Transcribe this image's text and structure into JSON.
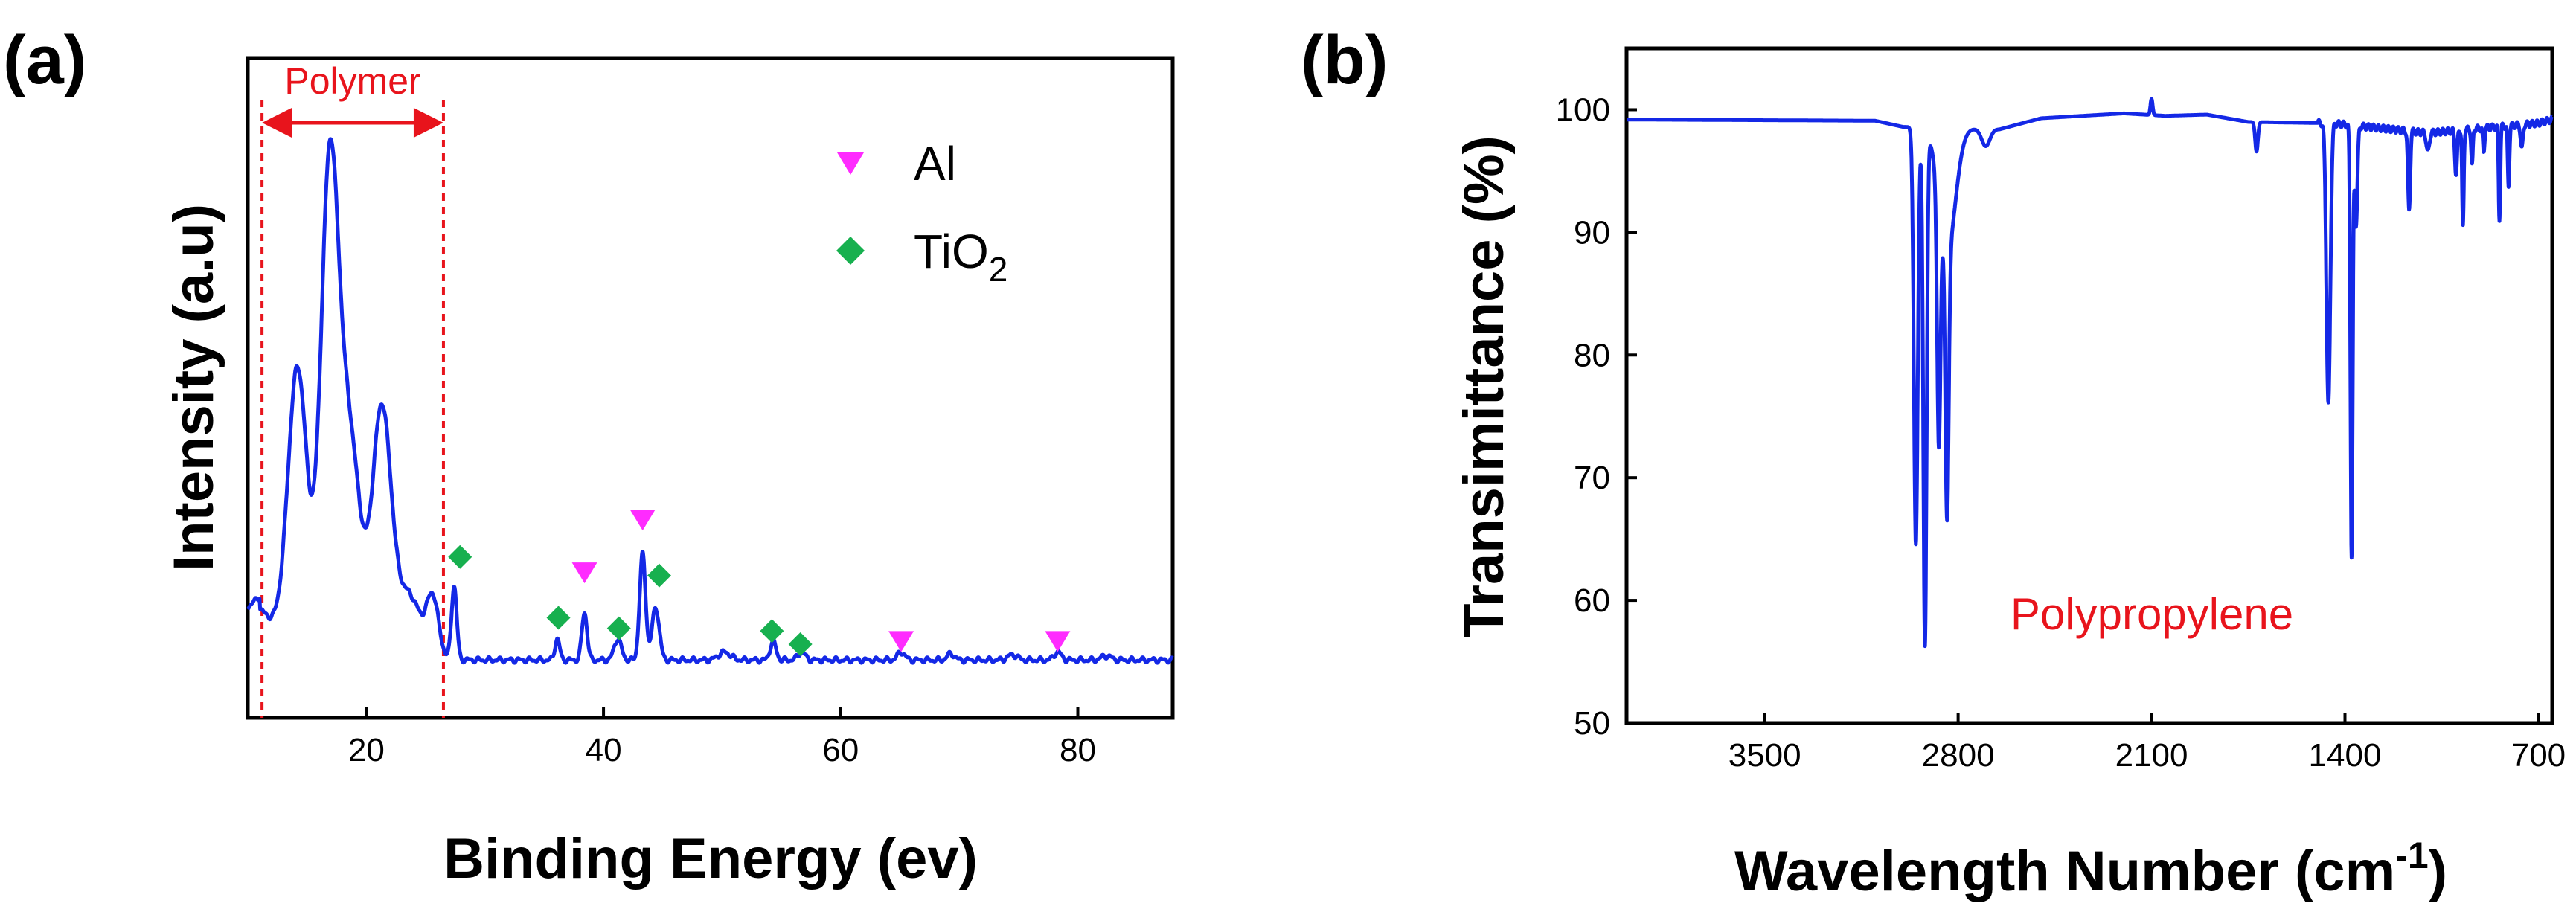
{
  "colors": {
    "series": "#1428e6",
    "annotation": "#e8141c",
    "al_marker": "#ff2bff",
    "tio2_marker": "#17b04f",
    "axis": "#000000"
  },
  "chart_data": [
    {
      "type": "line",
      "panel_label": "(a)",
      "title": "",
      "xlabel": "Binding Energy (ev)",
      "ylabel": "Intensity (a.u)",
      "xlim": [
        10,
        88
      ],
      "ylim": [
        0,
        100
      ],
      "xticks": [
        20,
        40,
        60,
        80
      ],
      "yticks": [],
      "grid": false,
      "legend_position": "top-right",
      "legend": [
        {
          "name": "Al",
          "marker": "triangle-down"
        },
        {
          "name": "TiO",
          "subscript": "2",
          "marker": "diamond"
        }
      ],
      "region_annotation": {
        "label": "Polymer",
        "x_start": 11.2,
        "x_end": 26.5
      },
      "series": [
        {
          "name": "Intensity",
          "peaks": [
            {
              "x": 14.2,
              "height": 52,
              "width": 0.8
            },
            {
              "x": 16.9,
              "height": 90,
              "width": 0.75
            },
            {
              "x": 18.6,
              "height": 40,
              "width": 0.9
            },
            {
              "x": 21.3,
              "height": 47,
              "width": 0.8
            },
            {
              "x": 23.6,
              "height": 12,
              "width": 1.0
            },
            {
              "x": 25.6,
              "height": 11,
              "width": 0.5
            },
            {
              "x": 27.4,
              "height": 14,
              "width": 0.22
            },
            {
              "x": 36.1,
              "height": 4,
              "width": 0.2
            },
            {
              "x": 38.4,
              "height": 9,
              "width": 0.22
            },
            {
              "x": 41.2,
              "height": 4,
              "width": 0.3
            },
            {
              "x": 43.3,
              "height": 20,
              "width": 0.25
            },
            {
              "x": 44.4,
              "height": 10,
              "width": 0.3
            },
            {
              "x": 50.2,
              "height": 1.5,
              "width": 0.5
            },
            {
              "x": 54.3,
              "height": 3.5,
              "width": 0.25
            },
            {
              "x": 56.7,
              "height": 1.5,
              "width": 0.3
            },
            {
              "x": 65.1,
              "height": 1.5,
              "width": 0.3
            },
            {
              "x": 69.3,
              "height": 1.2,
              "width": 0.3
            },
            {
              "x": 74.5,
              "height": 1,
              "width": 0.4
            },
            {
              "x": 78.3,
              "height": 1.5,
              "width": 0.3
            },
            {
              "x": 82.4,
              "height": 0.8,
              "width": 0.4
            }
          ]
        }
      ],
      "markers": [
        {
          "kind": "Al",
          "x": 38.4,
          "y": 19
        },
        {
          "kind": "Al",
          "x": 43.3,
          "y": 29
        },
        {
          "kind": "Al",
          "x": 65.1,
          "y": 6
        },
        {
          "kind": "Al",
          "x": 78.3,
          "y": 6
        },
        {
          "kind": "TiO2",
          "x": 27.9,
          "y": 22
        },
        {
          "kind": "TiO2",
          "x": 36.2,
          "y": 10.5
        },
        {
          "kind": "TiO2",
          "x": 41.3,
          "y": 8.5
        },
        {
          "kind": "TiO2",
          "x": 44.7,
          "y": 18.5
        },
        {
          "kind": "TiO2",
          "x": 54.2,
          "y": 8
        },
        {
          "kind": "TiO2",
          "x": 56.6,
          "y": 5.5
        }
      ]
    },
    {
      "type": "line",
      "panel_label": "(b)",
      "title": "",
      "xlabel": "Wavelength Number (cm",
      "xlabel_superscript": "-1",
      "xlabel_close": ")",
      "ylabel": "Transimittance (%)",
      "xlim": [
        4000,
        650
      ],
      "ylim": [
        50,
        105
      ],
      "xticks": [
        3500,
        2800,
        2100,
        1400,
        700
      ],
      "yticks": [
        50,
        60,
        70,
        80,
        90,
        100
      ],
      "grid": false,
      "annotation": "Polypropylene",
      "series": [
        {
          "name": "Transmittance",
          "baseline": [
            [
              4000,
              99.2
            ],
            [
              3100,
              99.1
            ],
            [
              3000,
              98.6
            ],
            [
              2650,
              98.4
            ],
            [
              2500,
              99.3
            ],
            [
              2200,
              99.7
            ],
            [
              2050,
              99.5
            ],
            [
              1900,
              99.6
            ],
            [
              1750,
              99.0
            ],
            [
              1450,
              98.9
            ],
            [
              1100,
              98.1
            ],
            [
              900,
              98.5
            ],
            [
              700,
              98.9
            ],
            [
              650,
              99.2
            ]
          ],
          "dips": [
            {
              "x": 2953,
              "depth": 34,
              "width": 7
            },
            {
              "x": 2920,
              "depth": 42,
              "width": 6
            },
            {
              "x": 2870,
              "depth": 20,
              "width": 6
            },
            {
              "x": 2840,
              "depth": 22,
              "width": 6
            },
            {
              "x": 2840,
              "depth": 10,
              "width": 30
            },
            {
              "x": 2700,
              "depth": 1.4,
              "width": 15
            },
            {
              "x": 2100,
              "depth": -1.3,
              "width": 4
            },
            {
              "x": 1720,
              "depth": 2.4,
              "width": 5
            },
            {
              "x": 1460,
              "depth": 23,
              "width": 7
            },
            {
              "x": 1376,
              "depth": 35,
              "width": 4
            },
            {
              "x": 1360,
              "depth": 8,
              "width": 5
            },
            {
              "x": 1168,
              "depth": 6.5,
              "width": 4
            },
            {
              "x": 1100,
              "depth": 1.6,
              "width": 5
            },
            {
              "x": 998,
              "depth": 3.5,
              "width": 4
            },
            {
              "x": 973,
              "depth": 8,
              "width": 3
            },
            {
              "x": 940,
              "depth": 3,
              "width": 3
            },
            {
              "x": 898,
              "depth": 2,
              "width": 3
            },
            {
              "x": 841,
              "depth": 7.5,
              "width": 3
            },
            {
              "x": 808,
              "depth": 5,
              "width": 3
            },
            {
              "x": 760,
              "depth": 2,
              "width": 4
            }
          ]
        }
      ]
    }
  ]
}
